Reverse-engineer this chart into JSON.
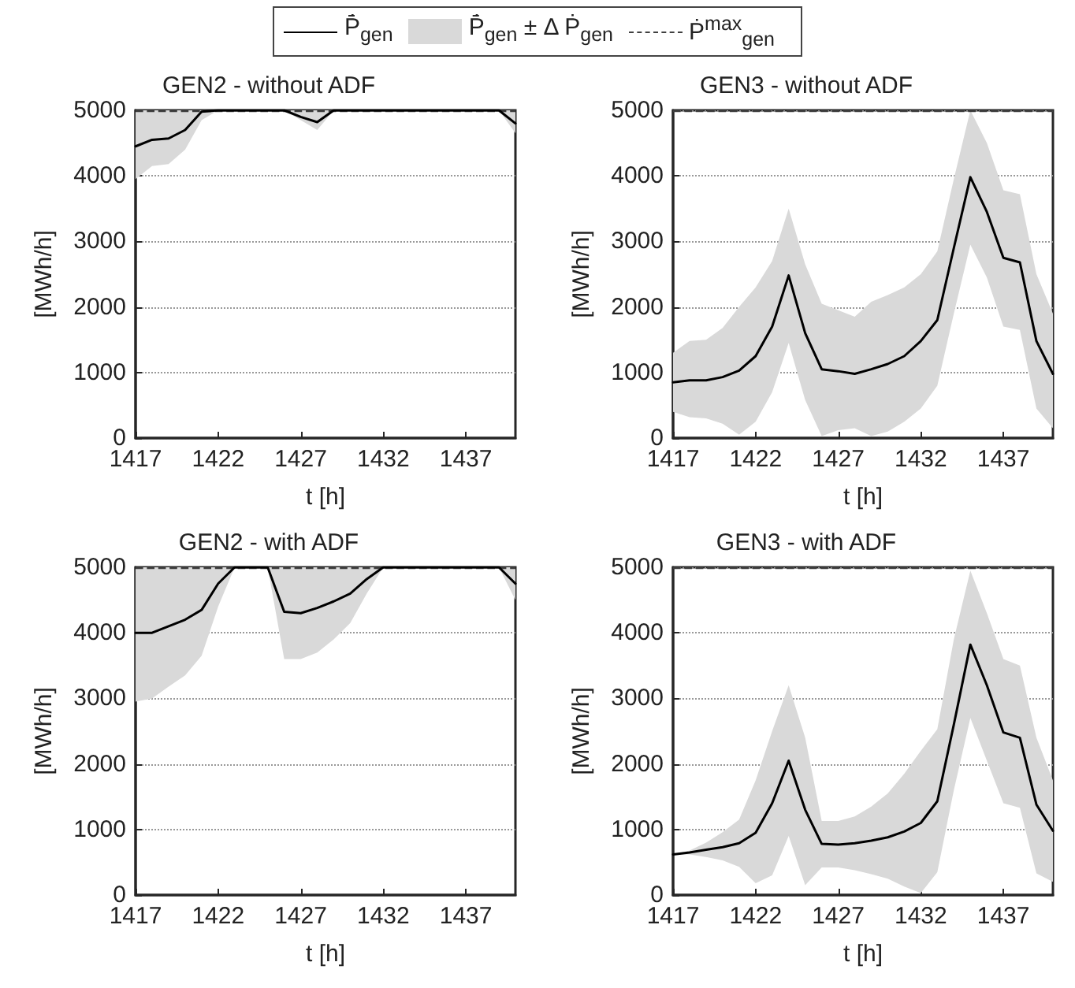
{
  "chart_data": [
    {
      "type": "line",
      "title": "GEN2 - without ADF",
      "xlabel": "t [h]",
      "ylabel": "[MWh/h]",
      "xlim": [
        1417,
        1440
      ],
      "xticks": [
        1417,
        1422,
        1427,
        1432,
        1437
      ],
      "ylim": [
        0,
        5000
      ],
      "yticks": [
        0,
        1000,
        2000,
        3000,
        4000,
        5000
      ],
      "grid": "y",
      "legend": "top",
      "marker": "none",
      "annotations": [
        "Ṗ̄$_{gen}$ ± Δ Ṗ$_{gen}$"
      ],
      "x": [
        1417,
        1418,
        1419,
        1420,
        1421,
        1422,
        1423,
        1424,
        1425,
        1426,
        1427,
        1428,
        1429,
        1430,
        1431,
        1432,
        1433,
        1434,
        1435,
        1436,
        1437,
        1438,
        1439,
        1440
      ],
      "series": [
        {
          "name": "Ṗ̄$_{gen}$",
          "color": "#000000",
          "line_style": "solid",
          "values": [
            4450,
            4550,
            4570,
            4700,
            4980,
            5000,
            5000,
            5000,
            5000,
            5000,
            4900,
            4820,
            5000,
            5000,
            5000,
            5000,
            5000,
            5000,
            5000,
            5000,
            5000,
            5000,
            5000,
            4800
          ],
          "lower": [
            3950,
            4150,
            4180,
            4400,
            4850,
            5000,
            5000,
            5000,
            5000,
            5000,
            4850,
            4700,
            5000,
            5000,
            5000,
            5000,
            5000,
            5000,
            5000,
            5000,
            5000,
            5000,
            5000,
            4650
          ],
          "upper": [
            5000,
            5000,
            5000,
            5000,
            5000,
            5000,
            5000,
            5000,
            5000,
            5000,
            5000,
            5000,
            5000,
            5000,
            5000,
            5000,
            5000,
            5000,
            5000,
            5000,
            5000,
            5000,
            5000,
            5000
          ]
        }
      ],
      "ref_lines": [
        {
          "axis": "y",
          "value": 5000,
          "label": "Ṗ$^{max}$$_{gen}$",
          "color": "#404040",
          "line_style": "dashed"
        }
      ]
    },
    {
      "type": "line",
      "title": "GEN3 - without ADF",
      "xlabel": "t [h]",
      "ylabel": "[MWh/h]",
      "xlim": [
        1417,
        1440
      ],
      "xticks": [
        1417,
        1422,
        1427,
        1432,
        1437
      ],
      "ylim": [
        0,
        5000
      ],
      "yticks": [
        0,
        1000,
        2000,
        3000,
        4000,
        5000
      ],
      "grid": "y",
      "marker": "none",
      "x": [
        1417,
        1418,
        1419,
        1420,
        1421,
        1422,
        1423,
        1424,
        1425,
        1426,
        1427,
        1428,
        1429,
        1430,
        1431,
        1432,
        1433,
        1434,
        1435,
        1436,
        1437,
        1438,
        1439,
        1440
      ],
      "series": [
        {
          "color": "#000000",
          "line_style": "solid",
          "values": [
            850,
            880,
            880,
            930,
            1030,
            1250,
            1700,
            2480,
            1600,
            1050,
            1020,
            980,
            1050,
            1130,
            1250,
            1480,
            1800,
            2900,
            3980,
            3450,
            2750,
            2680,
            1480,
            980
          ],
          "lower": [
            400,
            320,
            300,
            220,
            50,
            250,
            700,
            1450,
            580,
            30,
            120,
            150,
            30,
            100,
            250,
            450,
            800,
            1900,
            2950,
            2450,
            1700,
            1650,
            450,
            150
          ],
          "upper": [
            1300,
            1480,
            1500,
            1680,
            2000,
            2300,
            2700,
            3500,
            2650,
            2050,
            1950,
            1850,
            2080,
            2180,
            2300,
            2500,
            2850,
            3950,
            5000,
            4500,
            3780,
            3720,
            2500,
            1900
          ]
        }
      ],
      "ref_lines": [
        {
          "axis": "y",
          "value": 5000,
          "color": "#404040",
          "line_style": "dashed"
        }
      ]
    },
    {
      "type": "line",
      "title": "GEN2 - with ADF",
      "xlabel": "t [h]",
      "ylabel": "[MWh/h]",
      "xlim": [
        1417,
        1440
      ],
      "xticks": [
        1417,
        1422,
        1427,
        1432,
        1437
      ],
      "ylim": [
        0,
        5000
      ],
      "yticks": [
        0,
        1000,
        2000,
        3000,
        4000,
        5000
      ],
      "grid": "y",
      "marker": "none",
      "x": [
        1417,
        1418,
        1419,
        1420,
        1421,
        1422,
        1423,
        1424,
        1425,
        1426,
        1427,
        1428,
        1429,
        1430,
        1431,
        1432,
        1433,
        1434,
        1435,
        1436,
        1437,
        1438,
        1439,
        1440
      ],
      "series": [
        {
          "color": "#000000",
          "line_style": "solid",
          "values": [
            4000,
            4000,
            4100,
            4200,
            4350,
            4750,
            5000,
            5000,
            5000,
            4320,
            4300,
            4380,
            4480,
            4600,
            4820,
            5000,
            5000,
            5000,
            5000,
            5000,
            5000,
            5000,
            5000,
            4750
          ],
          "lower": [
            2950,
            3000,
            3180,
            3350,
            3650,
            4400,
            5000,
            5000,
            5000,
            3600,
            3600,
            3700,
            3900,
            4150,
            4600,
            5000,
            5000,
            5000,
            5000,
            5000,
            5000,
            5000,
            5000,
            4500
          ],
          "upper": [
            5000,
            5000,
            5000,
            5000,
            5000,
            5000,
            5000,
            5000,
            5000,
            5000,
            5000,
            5000,
            5000,
            5000,
            5000,
            5000,
            5000,
            5000,
            5000,
            5000,
            5000,
            5000,
            5000,
            5000
          ]
        }
      ],
      "ref_lines": [
        {
          "axis": "y",
          "value": 5000,
          "color": "#404040",
          "line_style": "dashed"
        }
      ]
    },
    {
      "type": "line",
      "title": "GEN3 - with ADF",
      "xlabel": "t [h]",
      "ylabel": "[MWh/h]",
      "xlim": [
        1417,
        1440
      ],
      "xticks": [
        1417,
        1422,
        1427,
        1432,
        1437
      ],
      "ylim": [
        0,
        5000
      ],
      "yticks": [
        0,
        1000,
        2000,
        3000,
        4000,
        5000
      ],
      "grid": "y",
      "marker": "none",
      "x": [
        1417,
        1418,
        1419,
        1420,
        1421,
        1422,
        1423,
        1424,
        1425,
        1426,
        1427,
        1428,
        1429,
        1430,
        1431,
        1432,
        1433,
        1434,
        1435,
        1436,
        1437,
        1438,
        1439,
        1440
      ],
      "series": [
        {
          "color": "#000000",
          "line_style": "solid",
          "values": [
            620,
            650,
            690,
            730,
            790,
            950,
            1400,
            2050,
            1300,
            780,
            770,
            790,
            830,
            880,
            970,
            1100,
            1430,
            2600,
            3820,
            3200,
            2480,
            2400,
            1380,
            980
          ],
          "lower": [
            620,
            620,
            580,
            530,
            430,
            180,
            300,
            900,
            150,
            420,
            420,
            380,
            320,
            250,
            130,
            30,
            350,
            1600,
            2700,
            2050,
            1400,
            1330,
            330,
            200
          ],
          "upper": [
            620,
            680,
            800,
            960,
            1150,
            1750,
            2500,
            3200,
            2400,
            1130,
            1130,
            1200,
            1350,
            1550,
            1850,
            2200,
            2530,
            3900,
            4950,
            4300,
            3600,
            3500,
            2400,
            1750
          ]
        }
      ],
      "ref_lines": [
        {
          "axis": "y",
          "value": 5000,
          "color": "#404040",
          "line_style": "dashed"
        }
      ]
    }
  ]
}
